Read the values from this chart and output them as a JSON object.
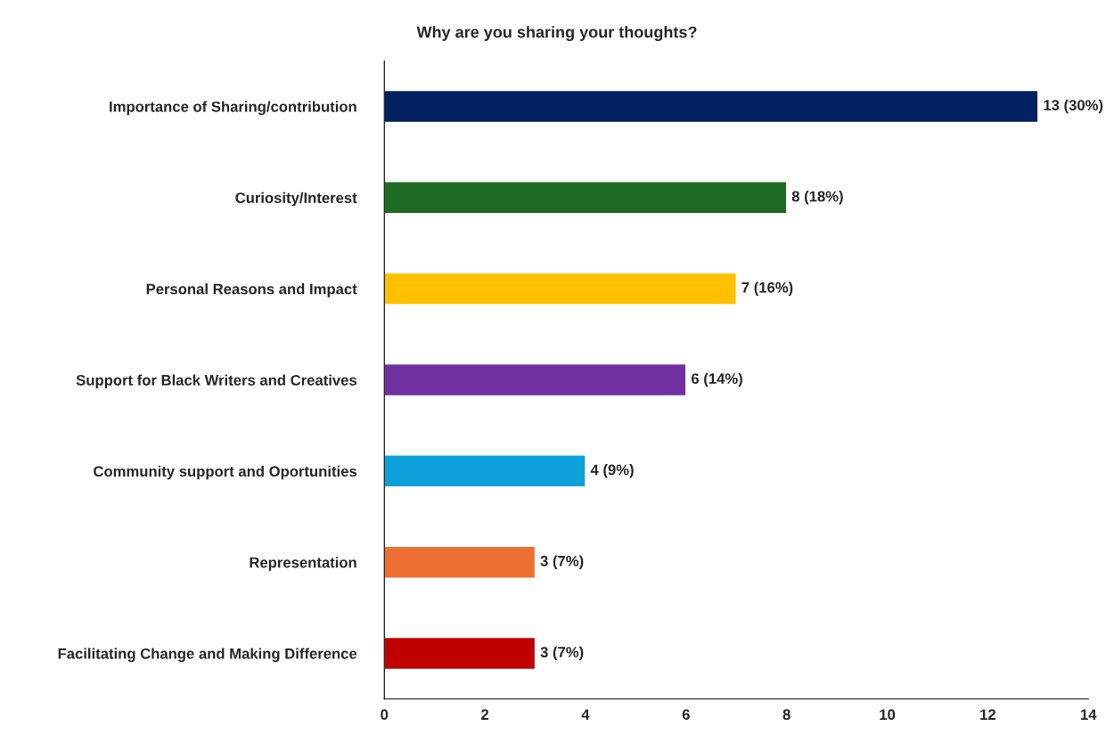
{
  "chart_data": {
    "type": "bar",
    "orientation": "horizontal",
    "title": "Why are you sharing your thoughts?",
    "categories": [
      "Importance of Sharing/contribution",
      "Curiosity/Interest",
      "Personal Reasons and Impact",
      "Support for Black Writers and Creatives",
      "Community support and Oportunities",
      "Representation",
      "Facilitating Change and Making Difference"
    ],
    "values": [
      13,
      8,
      7,
      6,
      4,
      3,
      3
    ],
    "colors": [
      "#002060",
      "#1e6b24",
      "#ffc000",
      "#7030a0",
      "#0ea0d8",
      "#ed7032",
      "#c00000"
    ],
    "value_labels": [
      "13 (30%)",
      "8 (18%)",
      "7 (16%)",
      "6 (14%)",
      "4 (9%)",
      "3 (7%)",
      "3 (7%)"
    ],
    "xlim": [
      0,
      14
    ],
    "xticks": [
      0,
      2,
      4,
      6,
      8,
      10,
      12,
      14
    ],
    "grid": false,
    "legend": false
  }
}
